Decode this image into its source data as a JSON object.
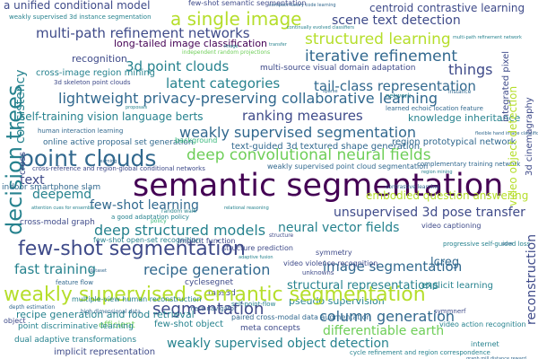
{
  "colors": {
    "purple": "#440154",
    "indigo": "#3e4a89",
    "blue": "#31688e",
    "teal": "#26828e",
    "green": "#35b779",
    "lime": "#6ece58",
    "yellow": "#b5de2b",
    "gold": "#d8e219"
  },
  "words": {
    "w_semantic_segmentation": "semantic segmentation",
    "w_weakly_supervised_semantic_segmentation": "weakly supervised semantic segmentation",
    "w_point_clouds": "point clouds",
    "w_few_shot_segmentation": "few-shot segmentation",
    "w_lightweight": "lightweight privacy-preserving collaborative learning",
    "w_deep_convolutional_neural_fields": "deep convolutional neural fields",
    "w_a_single_image": "a single image",
    "w_multi_path": "multi-path refinement networks",
    "w_structured_learning": "structured learning",
    "w_iterative_refinement": "iterative refinement",
    "w_3d_point_clouds": "3d point clouds",
    "w_weakly_supervised_segmentation": "weakly supervised segmentation",
    "w_deep_structured_models": "deep structured models",
    "w_neural_vector_fields": "neural vector fields",
    "w_recipe_generation": "recipe generation",
    "w_image_segmentation": "image segmentation",
    "w_fast_training": "fast training",
    "w_column_generation": "column generation",
    "w_differentiable_earth": "differentiable earth",
    "w_segmentation": "segmentation",
    "w_weakly_supervised_object_detection": "weakly supervised object detection",
    "w_decision_trees": "decision trees",
    "w_latent_categories": "latent categories",
    "w_ranking_measures": "ranking measures",
    "w_few_shot_learning": "few-shot learning",
    "w_deepemd": "deepemd",
    "w_scene_text_detection": "scene text detection",
    "w_long_tailed": "long-tailed image classification",
    "w_centroid_contrastive": "centroid contrastive learning",
    "w_a_unified_conditional_model": "a unified conditional model",
    "w_self_training": "self-training vision language berts",
    "w_tail_class": "tail-class representation",
    "w_things": "things",
    "w_recognition": "recognition",
    "w_unsupervised_3d_pose": "unsupervised 3d pose transfer",
    "w_structural_representations": "structural representations",
    "w_embodied_qa": "embodied question answering",
    "w_text": "text",
    "w_knowledge_inheritance": "knowledge inheritance",
    "w_cross_image_region": "cross-image region mining",
    "w_region_prototypical": "region prototypical network",
    "w_multi_source": "multi-source visual domain adaptation",
    "w_cross_modal_graph": "cross-modal graph",
    "w_explicit_learning": "explicit learning",
    "w_pseudo_supervision": "pseudo supervision",
    "w_recipe_food": "recipe generation and food retrieval",
    "w_efficient": "efficient",
    "w_few_shot_object": "few-shot object",
    "w_implicit_representation": "implicit representation",
    "w_point_discriminative": "point discriminative learning",
    "w_dual_adaptive": "dual adaptive transformations",
    "w_lcreg": "lcreg",
    "w_3d_skeleton": "3d skeleton point clouds",
    "w_indoor_smartphone": "indoor smartphone slam",
    "w_online_active": "online active proposal set generation",
    "w_weakly_supervised_point_cloud": "weakly supervised point cloud segmentation",
    "w_cross_reference": "cross-reference and region-global conditional networks",
    "w_text_guided": "text-guided 3d textured shape generation",
    "w_few_shot_semantic": "few-shot semantic segmentation",
    "w_weakly_supervised_3d_instance": "weakly supervised 3d instance segmentation",
    "w_consistency": "consistency",
    "w_cross": "cross",
    "w_video_object_detection": "video object detection",
    "w_reconstruction": "reconstruction",
    "w_3d_cinemagraphy": "3d cinemagraphy",
    "w_implicit_function": "implicit function",
    "w_structure_prediction": "structure prediction",
    "w_video_violence": "video violence recognition",
    "w_cyclesegnet": "cyclesegnet",
    "w_self_point_flow": "self-point-flow",
    "w_taps3d": "taps3d",
    "w_video_captioning": "video captioning",
    "w_symmetry": "symmetry",
    "w_background": "background",
    "w_feature_flow": "feature flow",
    "w_paired_cross_modal": "paired cross-modal data augmentation",
    "w_video_action": "video action recognition",
    "w_meta_concepts": "meta concepts",
    "w_cycle_refinement": "cycle refinement and region correspondence",
    "w_integrated_pixel": "integrated pixel",
    "w_unknowns": "unknowns",
    "w_multiple_view": "multiple-view human reconstruction",
    "w_symmnerf": "symmnerf",
    "w_internet": "internet",
    "w_object": "object",
    "w_human_interaction": "human interaction learning",
    "w_learned_echoic": "learned echoic location feature",
    "w_complementary": "complementary training network",
    "w_a_good_adaptation": "a good adaptation policy",
    "w_few_shot_open_set": "few-shot open-set recognition",
    "w_progressive": "progressive self-guided loss",
    "w_meta_navigator": "meta navigator",
    "w_independent_random": "independent random projections",
    "w_continually_evolved": "continually evolved classifiers",
    "w_policy": "policy",
    "w_depth_estimation": "depth estimation",
    "w_graph_mill": "graph mill distance reward",
    "w_random_walk": "random walk",
    "w_flexible_hand_image": "flexible hand image classification",
    "w_attention_cues": "attention cues for ensemble",
    "w_compact": "compact luxury code learning",
    "w_network": "network",
    "w_instance": "instance",
    "w_multi_path_small": "multi-path refinement network",
    "w_high_dim": "high dimensional data",
    "w_contrastive_learning": "contrastive learning",
    "w_adaptive_fusion": "adaptive fusion",
    "w_relational": "relational reasoning",
    "w_region_mining": "region mining",
    "w_structure_tiny": "structure",
    "w_dataset": "dataset",
    "w_proposals": "proposals",
    "w_sparse": "sparse",
    "w_pose": "pose",
    "w_transfer": "transfer",
    "w_image": "image",
    "w_learning": "learning"
  }
}
